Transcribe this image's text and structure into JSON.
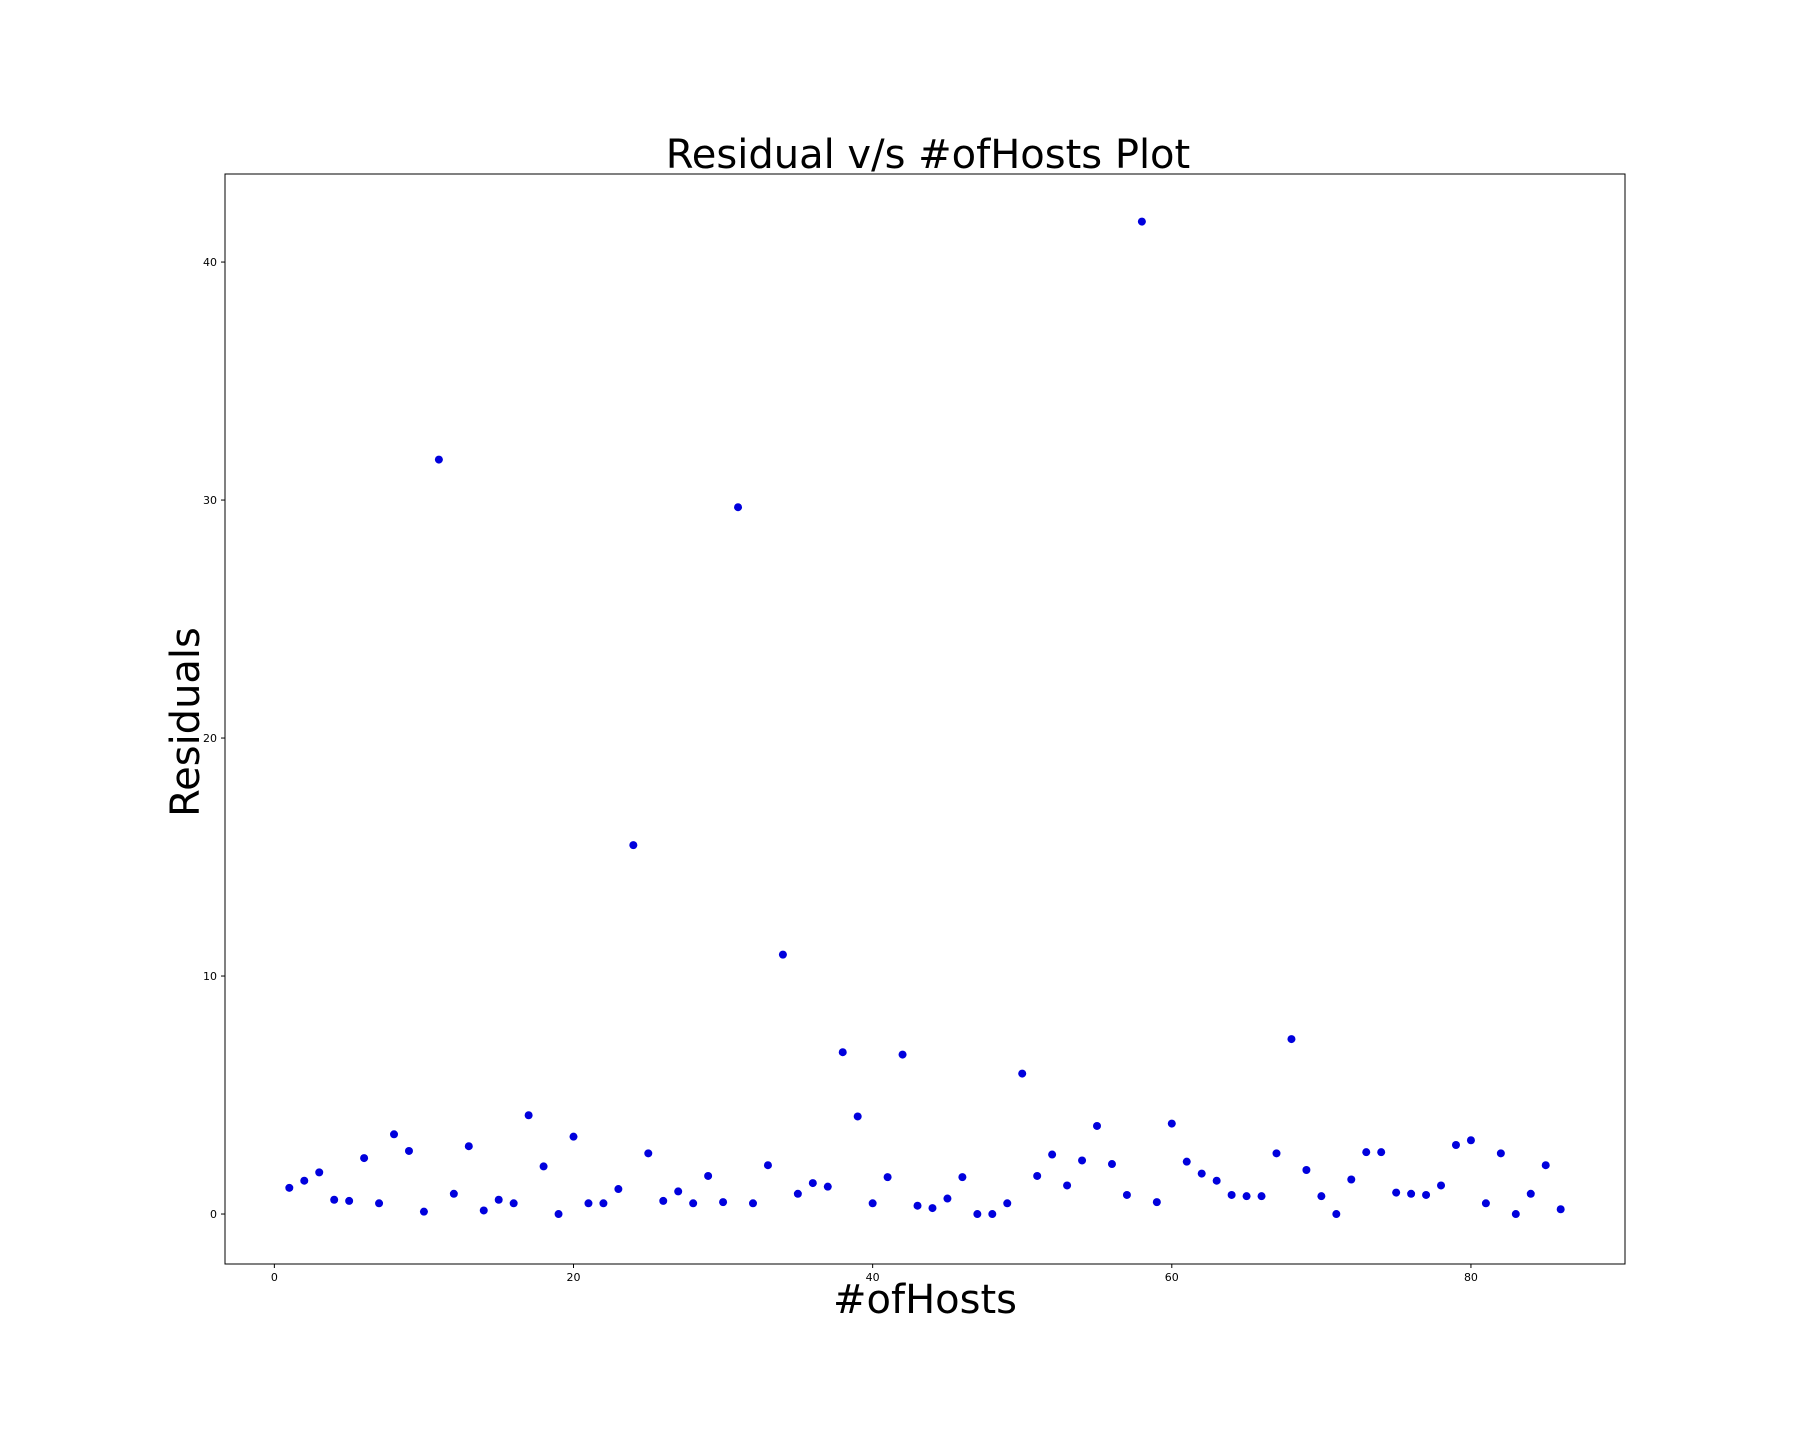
{
  "chart_data": {
    "type": "scatter",
    "title": "Residual v/s #ofHosts Plot",
    "xlabel": "#ofHosts",
    "ylabel": "Residuals",
    "xlim": [
      -3.3,
      90.3
    ],
    "ylim": [
      -2.1,
      43.7
    ],
    "xticks": [
      0,
      20,
      40,
      60,
      80
    ],
    "yticks": [
      0,
      10,
      20,
      30,
      40
    ],
    "grid": false,
    "legend": "none",
    "marker_color": "#0000dd",
    "series": [
      {
        "x": [
          1,
          2,
          3,
          4,
          5,
          6,
          7,
          8,
          9,
          10,
          11,
          12,
          13,
          14,
          15,
          16,
          17,
          18,
          19,
          20,
          21,
          22,
          23,
          24,
          25,
          26,
          27,
          28,
          29,
          30,
          31,
          32,
          33,
          34,
          35,
          36,
          37,
          38,
          39,
          40,
          41,
          42,
          43,
          44,
          45,
          46,
          47,
          48,
          49,
          50,
          51,
          52,
          53,
          54,
          55,
          56,
          57,
          58,
          59,
          60,
          61,
          62,
          63,
          64,
          65,
          66,
          67,
          68,
          69,
          70,
          71,
          72,
          73,
          74,
          75,
          76,
          77,
          78,
          79,
          80,
          81,
          82,
          83,
          84,
          85,
          86
        ],
        "y": [
          1.1,
          1.4,
          1.75,
          0.6,
          0.55,
          2.35,
          0.45,
          3.35,
          2.65,
          0.1,
          31.7,
          0.85,
          2.85,
          0.15,
          0.6,
          0.45,
          4.15,
          2.0,
          0.0,
          3.25,
          0.45,
          0.45,
          1.05,
          15.5,
          2.55,
          0.55,
          0.95,
          0.45,
          1.6,
          0.5,
          29.7,
          0.45,
          2.05,
          10.9,
          0.85,
          1.3,
          1.15,
          6.8,
          4.1,
          0.45,
          1.55,
          6.7,
          0.35,
          0.25,
          0.65,
          1.55,
          0.0,
          0.0,
          0.45,
          5.9,
          1.6,
          2.5,
          1.2,
          2.25,
          3.7,
          2.1,
          0.8,
          41.7,
          0.5,
          3.8,
          2.2,
          1.7,
          1.4,
          0.8,
          0.75,
          0.75,
          2.55,
          7.35,
          1.85,
          0.75,
          0.0,
          1.45,
          2.6,
          2.6,
          0.9,
          0.85,
          0.8,
          1.2,
          2.9,
          3.1,
          0.45,
          2.55,
          0.0,
          0.85,
          2.05,
          0.2
        ]
      }
    ]
  }
}
